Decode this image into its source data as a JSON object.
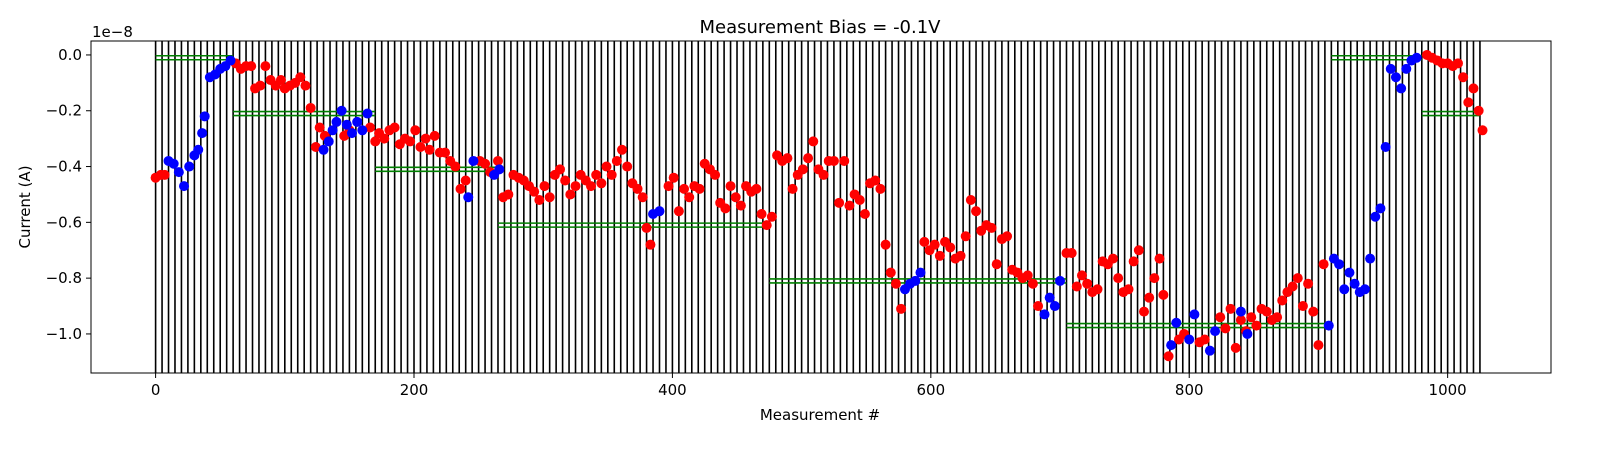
{
  "chart_data": {
    "type": "scatter",
    "title": "Measurement Bias = -0.1V",
    "xlabel": "Measurement #",
    "ylabel": "Current (A)",
    "offset_text": "1e−8",
    "xlim": [
      -50,
      1080
    ],
    "ylim": [
      -1.14,
      0.05
    ],
    "x_ticks": [
      0,
      200,
      400,
      600,
      800,
      1000
    ],
    "x_tick_labels": [
      "0",
      "200",
      "400",
      "600",
      "800",
      "1000"
    ],
    "y_ticks": [
      0.0,
      -0.2,
      -0.4,
      -0.6,
      -0.8,
      -1.0
    ],
    "y_tick_labels": [
      "0.0",
      "−0.2",
      "−0.4",
      "−0.6",
      "−0.8",
      "−1.0"
    ],
    "grid": false,
    "colors": {
      "red_series": "#ff0000",
      "blue_series": "#0000ff",
      "vertical_lines": "#000000",
      "level_lines": "#008000"
    },
    "vertical_lines": {
      "start": 0,
      "end": 1025,
      "step": 5
    },
    "level_segments": [
      {
        "x": [
          0,
          60
        ],
        "y": -0.01
      },
      {
        "x": [
          60,
          170
        ],
        "y": -0.21
      },
      {
        "x": [
          170,
          265
        ],
        "y": -0.41
      },
      {
        "x": [
          265,
          475
        ],
        "y": -0.61
      },
      {
        "x": [
          475,
          705
        ],
        "y": -0.81
      },
      {
        "x": [
          705,
          910
        ],
        "y": -0.97
      },
      {
        "x": [
          910,
          980
        ],
        "y": -0.01
      },
      {
        "x": [
          980,
          1025
        ],
        "y": -0.21
      }
    ],
    "series": [
      {
        "color": "red",
        "points": [
          [
            0,
            -0.44
          ],
          [
            4,
            -0.43
          ],
          [
            7,
            -0.43
          ],
          [
            62,
            -0.03
          ],
          [
            66,
            -0.05
          ],
          [
            70,
            -0.04
          ],
          [
            74,
            -0.04
          ],
          [
            77,
            -0.12
          ],
          [
            81,
            -0.11
          ],
          [
            85,
            -0.04
          ],
          [
            89,
            -0.09
          ],
          [
            93,
            -0.11
          ],
          [
            97,
            -0.09
          ],
          [
            100,
            -0.12
          ],
          [
            104,
            -0.11
          ],
          [
            108,
            -0.1
          ],
          [
            112,
            -0.08
          ],
          [
            116,
            -0.11
          ],
          [
            120,
            -0.19
          ],
          [
            124,
            -0.33
          ],
          [
            127,
            -0.26
          ],
          [
            131,
            -0.29
          ],
          [
            146,
            -0.29
          ],
          [
            150,
            -0.27
          ],
          [
            166,
            -0.26
          ],
          [
            170,
            -0.31
          ],
          [
            173,
            -0.28
          ],
          [
            177,
            -0.3
          ],
          [
            181,
            -0.27
          ],
          [
            185,
            -0.26
          ],
          [
            189,
            -0.32
          ],
          [
            193,
            -0.3
          ],
          [
            197,
            -0.31
          ],
          [
            201,
            -0.27
          ],
          [
            205,
            -0.33
          ],
          [
            209,
            -0.3
          ],
          [
            212,
            -0.34
          ],
          [
            216,
            -0.29
          ],
          [
            220,
            -0.35
          ],
          [
            224,
            -0.35
          ],
          [
            228,
            -0.38
          ],
          [
            232,
            -0.4
          ],
          [
            236,
            -0.48
          ],
          [
            240,
            -0.45
          ],
          [
            251,
            -0.38
          ],
          [
            255,
            -0.39
          ],
          [
            259,
            -0.42
          ],
          [
            265,
            -0.38
          ],
          [
            269,
            -0.51
          ],
          [
            273,
            -0.5
          ],
          [
            277,
            -0.43
          ],
          [
            281,
            -0.44
          ],
          [
            285,
            -0.45
          ],
          [
            289,
            -0.47
          ],
          [
            293,
            -0.49
          ],
          [
            297,
            -0.52
          ],
          [
            301,
            -0.47
          ],
          [
            305,
            -0.51
          ],
          [
            309,
            -0.43
          ],
          [
            313,
            -0.41
          ],
          [
            317,
            -0.45
          ],
          [
            321,
            -0.5
          ],
          [
            325,
            -0.47
          ],
          [
            329,
            -0.43
          ],
          [
            333,
            -0.45
          ],
          [
            337,
            -0.47
          ],
          [
            341,
            -0.43
          ],
          [
            345,
            -0.46
          ],
          [
            349,
            -0.4
          ],
          [
            353,
            -0.43
          ],
          [
            357,
            -0.38
          ],
          [
            361,
            -0.34
          ],
          [
            365,
            -0.4
          ],
          [
            369,
            -0.46
          ],
          [
            373,
            -0.48
          ],
          [
            377,
            -0.51
          ],
          [
            380,
            -0.62
          ],
          [
            383,
            -0.68
          ],
          [
            397,
            -0.47
          ],
          [
            401,
            -0.44
          ],
          [
            405,
            -0.56
          ],
          [
            409,
            -0.48
          ],
          [
            413,
            -0.51
          ],
          [
            417,
            -0.47
          ],
          [
            421,
            -0.48
          ],
          [
            425,
            -0.39
          ],
          [
            429,
            -0.41
          ],
          [
            433,
            -0.43
          ],
          [
            437,
            -0.53
          ],
          [
            441,
            -0.55
          ],
          [
            445,
            -0.47
          ],
          [
            449,
            -0.51
          ],
          [
            453,
            -0.54
          ],
          [
            457,
            -0.47
          ],
          [
            461,
            -0.49
          ],
          [
            465,
            -0.48
          ],
          [
            469,
            -0.57
          ],
          [
            473,
            -0.61
          ],
          [
            477,
            -0.58
          ],
          [
            481,
            -0.36
          ],
          [
            485,
            -0.38
          ],
          [
            489,
            -0.37
          ],
          [
            493,
            -0.48
          ],
          [
            497,
            -0.43
          ],
          [
            501,
            -0.41
          ],
          [
            505,
            -0.37
          ],
          [
            509,
            -0.31
          ],
          [
            513,
            -0.41
          ],
          [
            517,
            -0.43
          ],
          [
            521,
            -0.38
          ],
          [
            525,
            -0.38
          ],
          [
            529,
            -0.53
          ],
          [
            533,
            -0.38
          ],
          [
            537,
            -0.54
          ],
          [
            541,
            -0.5
          ],
          [
            545,
            -0.52
          ],
          [
            549,
            -0.57
          ],
          [
            553,
            -0.46
          ],
          [
            557,
            -0.45
          ],
          [
            561,
            -0.48
          ],
          [
            565,
            -0.68
          ],
          [
            569,
            -0.78
          ],
          [
            573,
            -0.82
          ],
          [
            577,
            -0.91
          ],
          [
            595,
            -0.67
          ],
          [
            599,
            -0.7
          ],
          [
            603,
            -0.68
          ],
          [
            607,
            -0.72
          ],
          [
            611,
            -0.67
          ],
          [
            615,
            -0.69
          ],
          [
            619,
            -0.73
          ],
          [
            623,
            -0.72
          ],
          [
            627,
            -0.65
          ],
          [
            631,
            -0.52
          ],
          [
            635,
            -0.56
          ],
          [
            639,
            -0.63
          ],
          [
            643,
            -0.61
          ],
          [
            647,
            -0.62
          ],
          [
            651,
            -0.75
          ],
          [
            655,
            -0.66
          ],
          [
            659,
            -0.65
          ],
          [
            663,
            -0.77
          ],
          [
            667,
            -0.78
          ],
          [
            671,
            -0.8
          ],
          [
            675,
            -0.79
          ],
          [
            679,
            -0.82
          ],
          [
            683,
            -0.9
          ],
          [
            705,
            -0.71
          ],
          [
            709,
            -0.71
          ],
          [
            713,
            -0.83
          ],
          [
            717,
            -0.79
          ],
          [
            721,
            -0.82
          ],
          [
            725,
            -0.85
          ],
          [
            729,
            -0.84
          ],
          [
            733,
            -0.74
          ],
          [
            737,
            -0.75
          ],
          [
            741,
            -0.73
          ],
          [
            745,
            -0.8
          ],
          [
            749,
            -0.85
          ],
          [
            753,
            -0.84
          ],
          [
            757,
            -0.74
          ],
          [
            761,
            -0.7
          ],
          [
            765,
            -0.92
          ],
          [
            769,
            -0.87
          ],
          [
            773,
            -0.8
          ],
          [
            777,
            -0.73
          ],
          [
            780,
            -0.86
          ],
          [
            784,
            -1.08
          ],
          [
            792,
            -1.02
          ],
          [
            796,
            -1.0
          ],
          [
            808,
            -1.03
          ],
          [
            812,
            -1.02
          ],
          [
            824,
            -0.94
          ],
          [
            828,
            -0.98
          ],
          [
            832,
            -0.91
          ],
          [
            836,
            -1.05
          ],
          [
            840,
            -0.95
          ],
          [
            844,
            -0.99
          ],
          [
            848,
            -0.94
          ],
          [
            852,
            -0.97
          ],
          [
            856,
            -0.91
          ],
          [
            860,
            -0.92
          ],
          [
            864,
            -0.95
          ],
          [
            868,
            -0.94
          ],
          [
            872,
            -0.88
          ],
          [
            876,
            -0.85
          ],
          [
            880,
            -0.83
          ],
          [
            884,
            -0.8
          ],
          [
            888,
            -0.9
          ],
          [
            892,
            -0.82
          ],
          [
            896,
            -0.92
          ],
          [
            900,
            -1.04
          ],
          [
            904,
            -0.75
          ],
          [
            984,
            0.0
          ],
          [
            988,
            -0.01
          ],
          [
            992,
            -0.02
          ],
          [
            996,
            -0.03
          ],
          [
            1000,
            -0.03
          ],
          [
            1004,
            -0.04
          ],
          [
            1008,
            -0.03
          ],
          [
            1012,
            -0.08
          ],
          [
            1016,
            -0.17
          ],
          [
            1020,
            -0.12
          ],
          [
            1024,
            -0.2
          ],
          [
            1027,
            -0.27
          ]
        ]
      },
      {
        "color": "blue",
        "points": [
          [
            10,
            -0.38
          ],
          [
            14,
            -0.39
          ],
          [
            18,
            -0.42
          ],
          [
            22,
            -0.47
          ],
          [
            26,
            -0.4
          ],
          [
            30,
            -0.36
          ],
          [
            33,
            -0.34
          ],
          [
            36,
            -0.28
          ],
          [
            38,
            -0.22
          ],
          [
            42,
            -0.08
          ],
          [
            46,
            -0.07
          ],
          [
            50,
            -0.05
          ],
          [
            54,
            -0.04
          ],
          [
            58,
            -0.02
          ],
          [
            130,
            -0.34
          ],
          [
            134,
            -0.31
          ],
          [
            137,
            -0.27
          ],
          [
            140,
            -0.24
          ],
          [
            144,
            -0.2
          ],
          [
            148,
            -0.25
          ],
          [
            152,
            -0.28
          ],
          [
            156,
            -0.24
          ],
          [
            160,
            -0.27
          ],
          [
            164,
            -0.21
          ],
          [
            242,
            -0.51
          ],
          [
            246,
            -0.38
          ],
          [
            262,
            -0.43
          ],
          [
            266,
            -0.41
          ],
          [
            385,
            -0.57
          ],
          [
            390,
            -0.56
          ],
          [
            580,
            -0.84
          ],
          [
            584,
            -0.82
          ],
          [
            588,
            -0.81
          ],
          [
            592,
            -0.78
          ],
          [
            688,
            -0.93
          ],
          [
            692,
            -0.87
          ],
          [
            696,
            -0.9
          ],
          [
            700,
            -0.81
          ],
          [
            786,
            -1.04
          ],
          [
            790,
            -0.96
          ],
          [
            800,
            -1.02
          ],
          [
            804,
            -0.93
          ],
          [
            816,
            -1.06
          ],
          [
            820,
            -0.99
          ],
          [
            840,
            -0.92
          ],
          [
            845,
            -1.0
          ],
          [
            908,
            -0.97
          ],
          [
            912,
            -0.73
          ],
          [
            916,
            -0.75
          ],
          [
            920,
            -0.84
          ],
          [
            924,
            -0.78
          ],
          [
            928,
            -0.82
          ],
          [
            932,
            -0.85
          ],
          [
            936,
            -0.84
          ],
          [
            940,
            -0.73
          ],
          [
            944,
            -0.58
          ],
          [
            948,
            -0.55
          ],
          [
            952,
            -0.33
          ],
          [
            956,
            -0.05
          ],
          [
            960,
            -0.08
          ],
          [
            964,
            -0.12
          ],
          [
            968,
            -0.05
          ],
          [
            972,
            -0.02
          ],
          [
            976,
            -0.01
          ]
        ]
      }
    ]
  }
}
